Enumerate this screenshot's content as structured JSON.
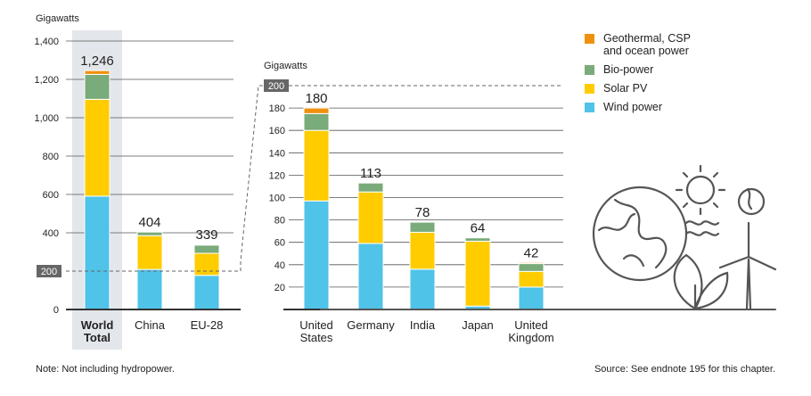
{
  "chart_data": [
    {
      "type": "bar",
      "stacked": true,
      "ylabel": "Gigawatts",
      "ylim": [
        0,
        1400
      ],
      "yticks": [
        "0",
        "200",
        "400",
        "600",
        "800",
        "1,000",
        "1,200",
        "1,400"
      ],
      "categories": [
        "World\nTotal",
        "China",
        "EU-28"
      ],
      "totals": [
        "1,246",
        "404",
        "339"
      ],
      "series": [
        {
          "name": "Wind power",
          "color": "#4fc3e8",
          "values": [
            591,
            209,
            178
          ]
        },
        {
          "name": "Solar PV",
          "color": "#ffcc00",
          "values": [
            505,
            176,
            115
          ]
        },
        {
          "name": "Bio-power",
          "color": "#7aab7a",
          "values": [
            130,
            19,
            43
          ]
        },
        {
          "name": "Geothermal, CSP\nand ocean power",
          "color": "#f0900f",
          "values": [
            20,
            0,
            3
          ]
        }
      ],
      "grid": true,
      "highlight_category": "World\nTotal",
      "zoom_marker": "200"
    },
    {
      "type": "bar",
      "stacked": true,
      "ylabel": "Gigawatts",
      "ylim": [
        0,
        200
      ],
      "yticks": [
        "20",
        "40",
        "60",
        "80",
        "100",
        "120",
        "140",
        "160",
        "180",
        "200"
      ],
      "categories": [
        "United\nStates",
        "Germany",
        "India",
        "Japan",
        "United\nKingdom"
      ],
      "totals": [
        "180",
        "113",
        "78",
        "64",
        "42"
      ],
      "series": [
        {
          "name": "Wind power",
          "color": "#4fc3e8",
          "values": [
            97,
            59,
            36,
            3,
            20
          ]
        },
        {
          "name": "Solar PV",
          "color": "#ffcc00",
          "values": [
            63,
            46,
            33,
            58,
            14
          ]
        },
        {
          "name": "Bio-power",
          "color": "#7aab7a",
          "values": [
            15,
            8,
            9,
            3,
            7
          ]
        },
        {
          "name": "Geothermal, CSP\nand ocean power",
          "color": "#f0900f",
          "values": [
            5,
            0,
            0,
            0,
            1
          ]
        }
      ],
      "grid": true
    }
  ],
  "legend": [
    {
      "label": "Geothermal, CSP\nand ocean power",
      "color": "#f0900f"
    },
    {
      "label": "Bio-power",
      "color": "#7aab7a"
    },
    {
      "label": "Solar PV",
      "color": "#ffcc00"
    },
    {
      "label": "Wind power",
      "color": "#4fc3e8"
    }
  ],
  "notes": {
    "left": "Note: Not including hydropower.",
    "right": "Source: See endnote 195 for this chapter."
  }
}
